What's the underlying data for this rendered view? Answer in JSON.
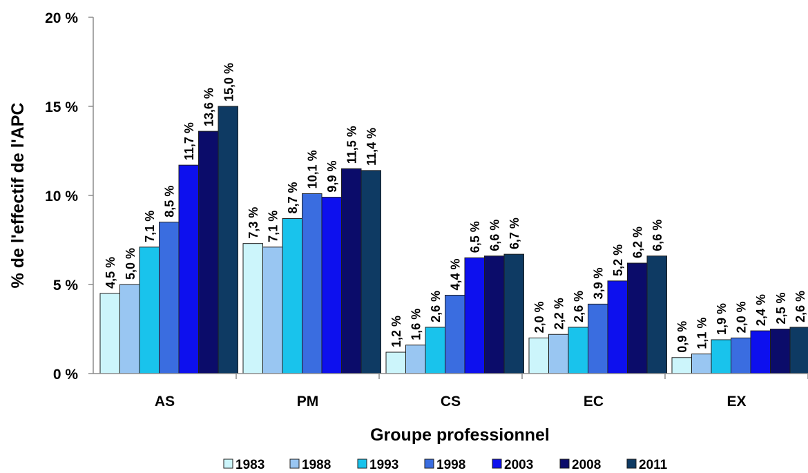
{
  "chart_data": {
    "type": "bar",
    "xlabel": "Groupe professionnel",
    "ylabel": "% de l'effectif de l'APC",
    "ylim": [
      0,
      20
    ],
    "y_ticks": [
      "0 %",
      "5 %",
      "10 %",
      "15 %",
      "20 %"
    ],
    "y_tick_values": [
      0,
      5,
      10,
      15,
      20
    ],
    "categories": [
      "AS",
      "PM",
      "CS",
      "EC",
      "EX"
    ],
    "grid": false,
    "legend_position": "bottom",
    "series": [
      {
        "name": "1983",
        "color": "#ccf5fb",
        "values": [
          4.5,
          7.3,
          1.2,
          2.0,
          0.9
        ],
        "labels": [
          "4,5 %",
          "7,3 %",
          "1,2 %",
          "2,0 %",
          "0,9 %"
        ]
      },
      {
        "name": "1988",
        "color": "#99c6f2",
        "values": [
          5.0,
          7.1,
          1.6,
          2.2,
          1.1
        ],
        "labels": [
          "5,0 %",
          "7,1 %",
          "1,6 %",
          "2,2 %",
          "1,1 %"
        ]
      },
      {
        "name": "1993",
        "color": "#19c3ec",
        "values": [
          7.1,
          8.7,
          2.6,
          2.6,
          1.9
        ],
        "labels": [
          "7,1 %",
          "8,7 %",
          "2,6 %",
          "2,6 %",
          "1,9 %"
        ]
      },
      {
        "name": "1998",
        "color": "#3a6de0",
        "values": [
          8.5,
          10.1,
          4.4,
          3.9,
          2.0
        ],
        "labels": [
          "8,5 %",
          "10,1 %",
          "4,4 %",
          "3,9 %",
          "2,0 %"
        ]
      },
      {
        "name": "2003",
        "color": "#0d10ee",
        "values": [
          11.7,
          9.9,
          6.5,
          5.2,
          2.4
        ],
        "labels": [
          "11,7 %",
          "9,9 %",
          "6,5 %",
          "5,2 %",
          "2,4 %"
        ]
      },
      {
        "name": "2008",
        "color": "#0b0c6a",
        "values": [
          13.6,
          11.5,
          6.6,
          6.2,
          2.5
        ],
        "labels": [
          "13,6 %",
          "11,5 %",
          "6,6 %",
          "6,2 %",
          "2,5 %"
        ]
      },
      {
        "name": "2011",
        "color": "#0e3a63",
        "values": [
          15.0,
          11.4,
          6.7,
          6.6,
          2.6
        ],
        "labels": [
          "15,0 %",
          "11,4 %",
          "6,7 %",
          "6,6 %",
          "2,6 %"
        ]
      }
    ]
  }
}
